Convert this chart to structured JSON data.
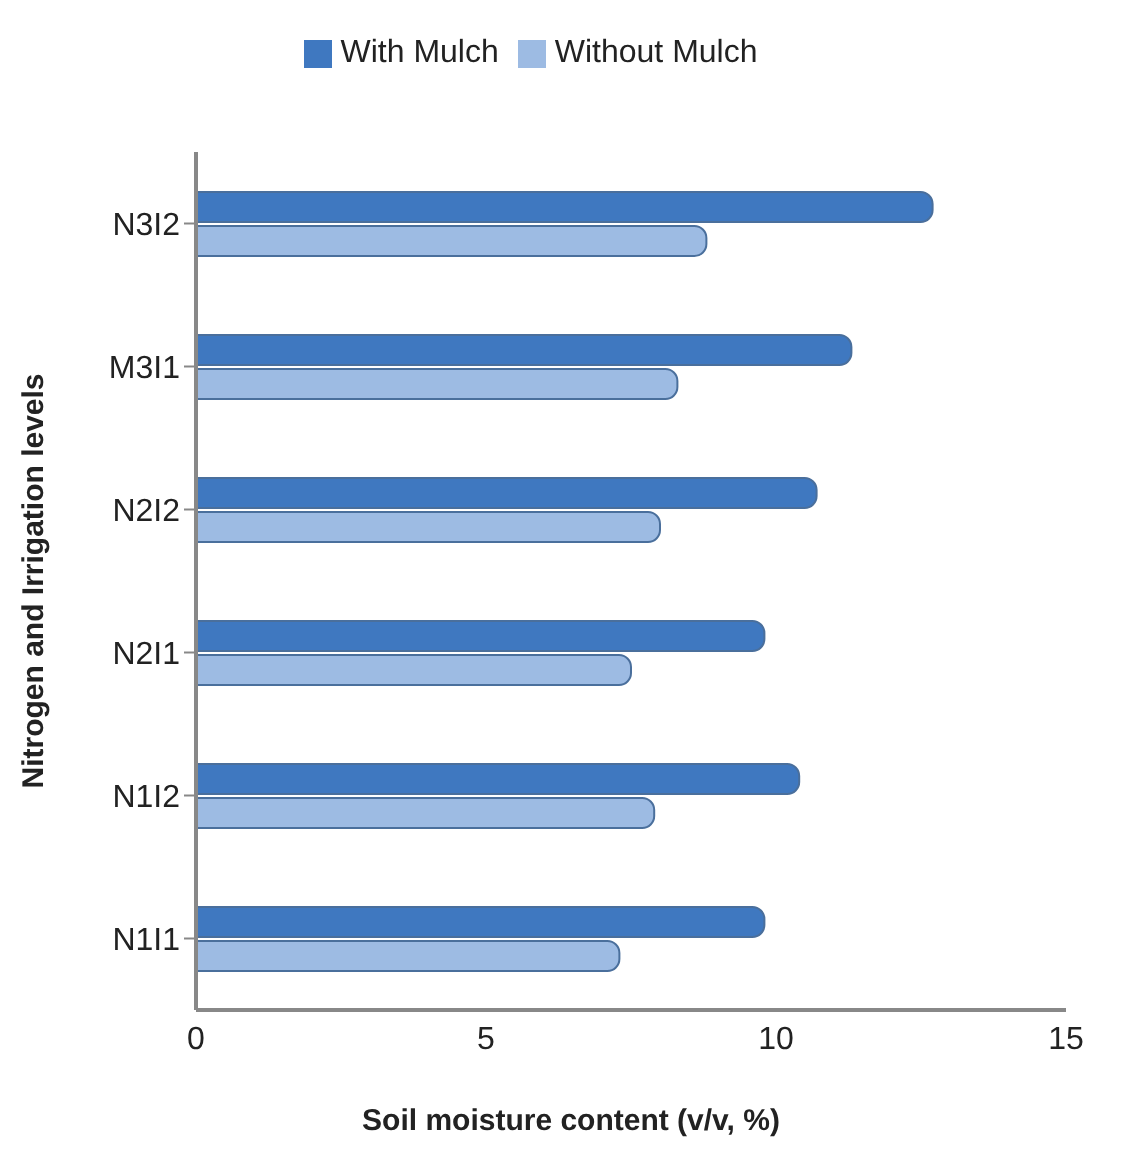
{
  "chart_data": {
    "type": "bar",
    "orientation": "horizontal",
    "xlabel": "Soil moisture content (v/v, %)",
    "ylabel": "Nitrogen and Irrigation levels",
    "categories": [
      "N3I2",
      "M3I1",
      "N2I2",
      "N2I1",
      "N1I2",
      "N1I1"
    ],
    "series": [
      {
        "name": "With Mulch",
        "color": "#3f78c0",
        "values": [
          12.7,
          11.3,
          10.7,
          9.8,
          10.4,
          9.8
        ]
      },
      {
        "name": "Without Mulch",
        "color": "#9dbbe3",
        "values": [
          8.8,
          8.3,
          8.0,
          7.5,
          7.9,
          7.3
        ]
      }
    ],
    "xlim": [
      0,
      15
    ],
    "xticks": [
      0,
      5,
      10,
      15
    ],
    "grid": false,
    "legend": "top"
  }
}
